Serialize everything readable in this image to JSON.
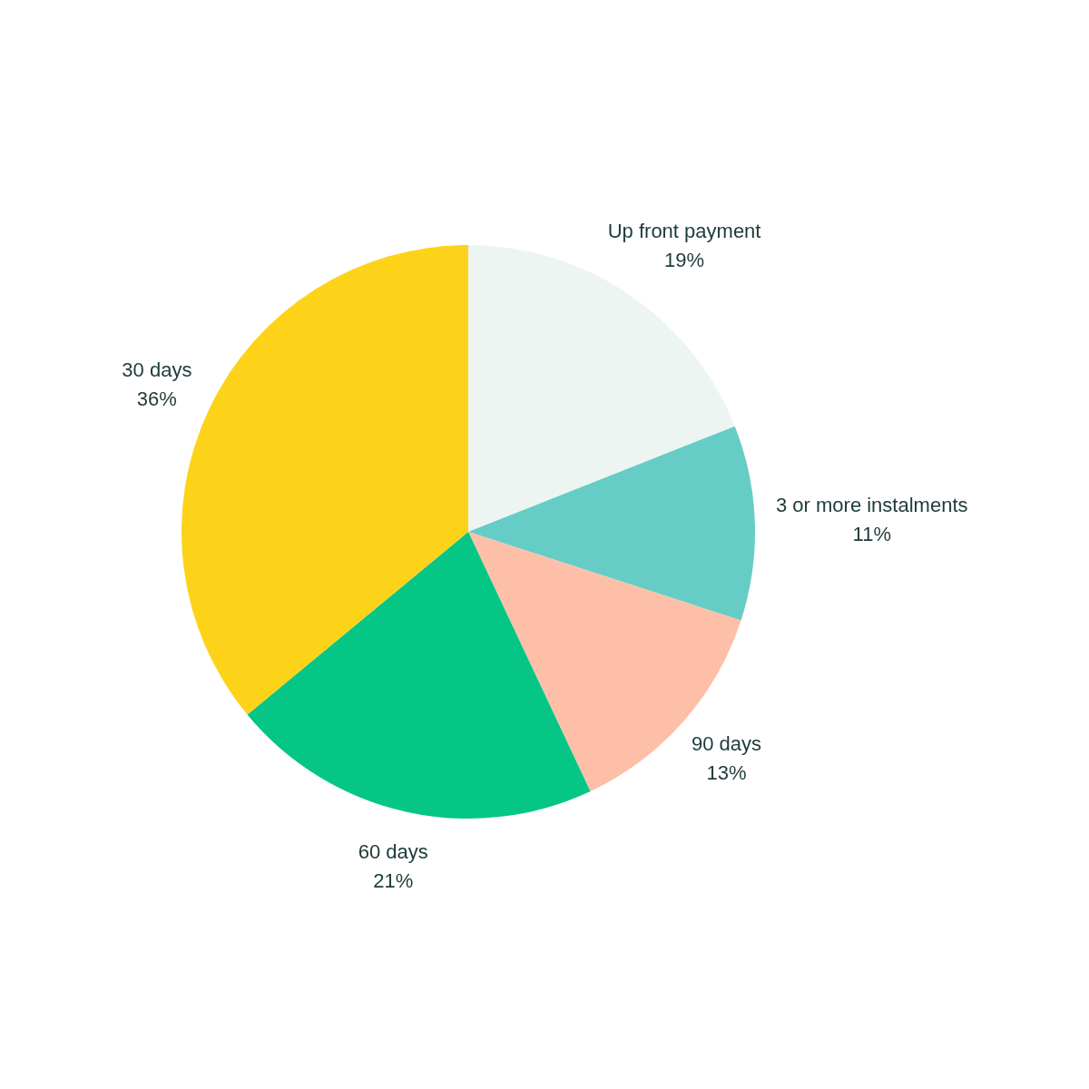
{
  "chart_data": {
    "type": "pie",
    "categories": [
      "Up front payment",
      "3 or more instalments",
      "90 days",
      "60 days",
      "30 days"
    ],
    "values": [
      19,
      11,
      13,
      21,
      36
    ],
    "value_labels": [
      "19%",
      "11%",
      "13%",
      "21%",
      "36%"
    ],
    "colors": [
      "#edf5f3",
      "#66cdc6",
      "#fdbfa8",
      "#05c685",
      "#fdd31a"
    ],
    "legend": false
  }
}
